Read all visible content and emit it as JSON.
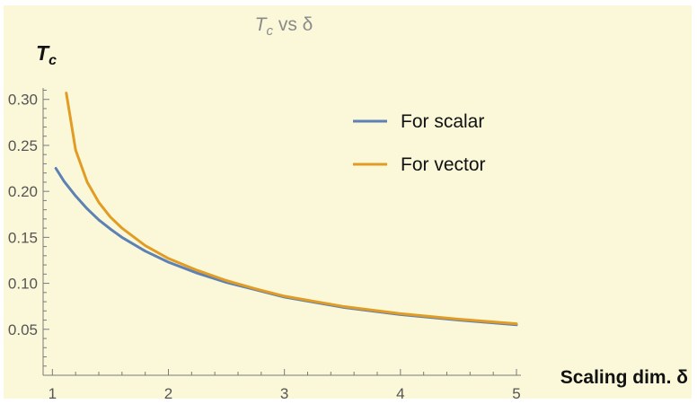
{
  "chart_data": {
    "type": "line",
    "title_main": "T",
    "title_sub": "c",
    "title_rest": " vs δ",
    "ylabel_main": "T",
    "ylabel_sub": "c",
    "xlabel": "Scaling dim. δ",
    "xlim": [
      0.92,
      5.0
    ],
    "ylim": [
      0.0,
      0.33
    ],
    "xticks_major": [
      1,
      2,
      3,
      4,
      5
    ],
    "xtick_labels": [
      "1",
      "2",
      "3",
      "4",
      "5"
    ],
    "yticks_major": [
      0.05,
      0.1,
      0.15,
      0.2,
      0.25,
      0.3
    ],
    "ytick_labels": [
      "0.05",
      "0.10",
      "0.15",
      "0.20",
      "0.25",
      "0.30"
    ],
    "grid": false,
    "legend_position": "top-right",
    "background_color": "#fbf8d9",
    "series": [
      {
        "name": "For scalar",
        "color": "#5e81b5",
        "x": [
          1.03,
          1.1,
          1.2,
          1.3,
          1.4,
          1.5,
          1.6,
          1.8,
          2.0,
          2.25,
          2.5,
          2.75,
          3.0,
          3.5,
          4.0,
          4.5,
          5.0
        ],
        "y": [
          0.225,
          0.211,
          0.195,
          0.181,
          0.169,
          0.159,
          0.15,
          0.135,
          0.123,
          0.111,
          0.101,
          0.093,
          0.085,
          0.074,
          0.066,
          0.06,
          0.055
        ]
      },
      {
        "name": "For vector",
        "color": "#e19c24",
        "x": [
          1.12,
          1.2,
          1.3,
          1.4,
          1.5,
          1.6,
          1.8,
          2.0,
          2.25,
          2.5,
          2.75,
          3.0,
          3.5,
          4.0,
          4.5,
          5.0
        ],
        "y": [
          0.307,
          0.245,
          0.21,
          0.188,
          0.172,
          0.16,
          0.141,
          0.127,
          0.114,
          0.103,
          0.094,
          0.086,
          0.075,
          0.067,
          0.061,
          0.056
        ]
      }
    ]
  }
}
